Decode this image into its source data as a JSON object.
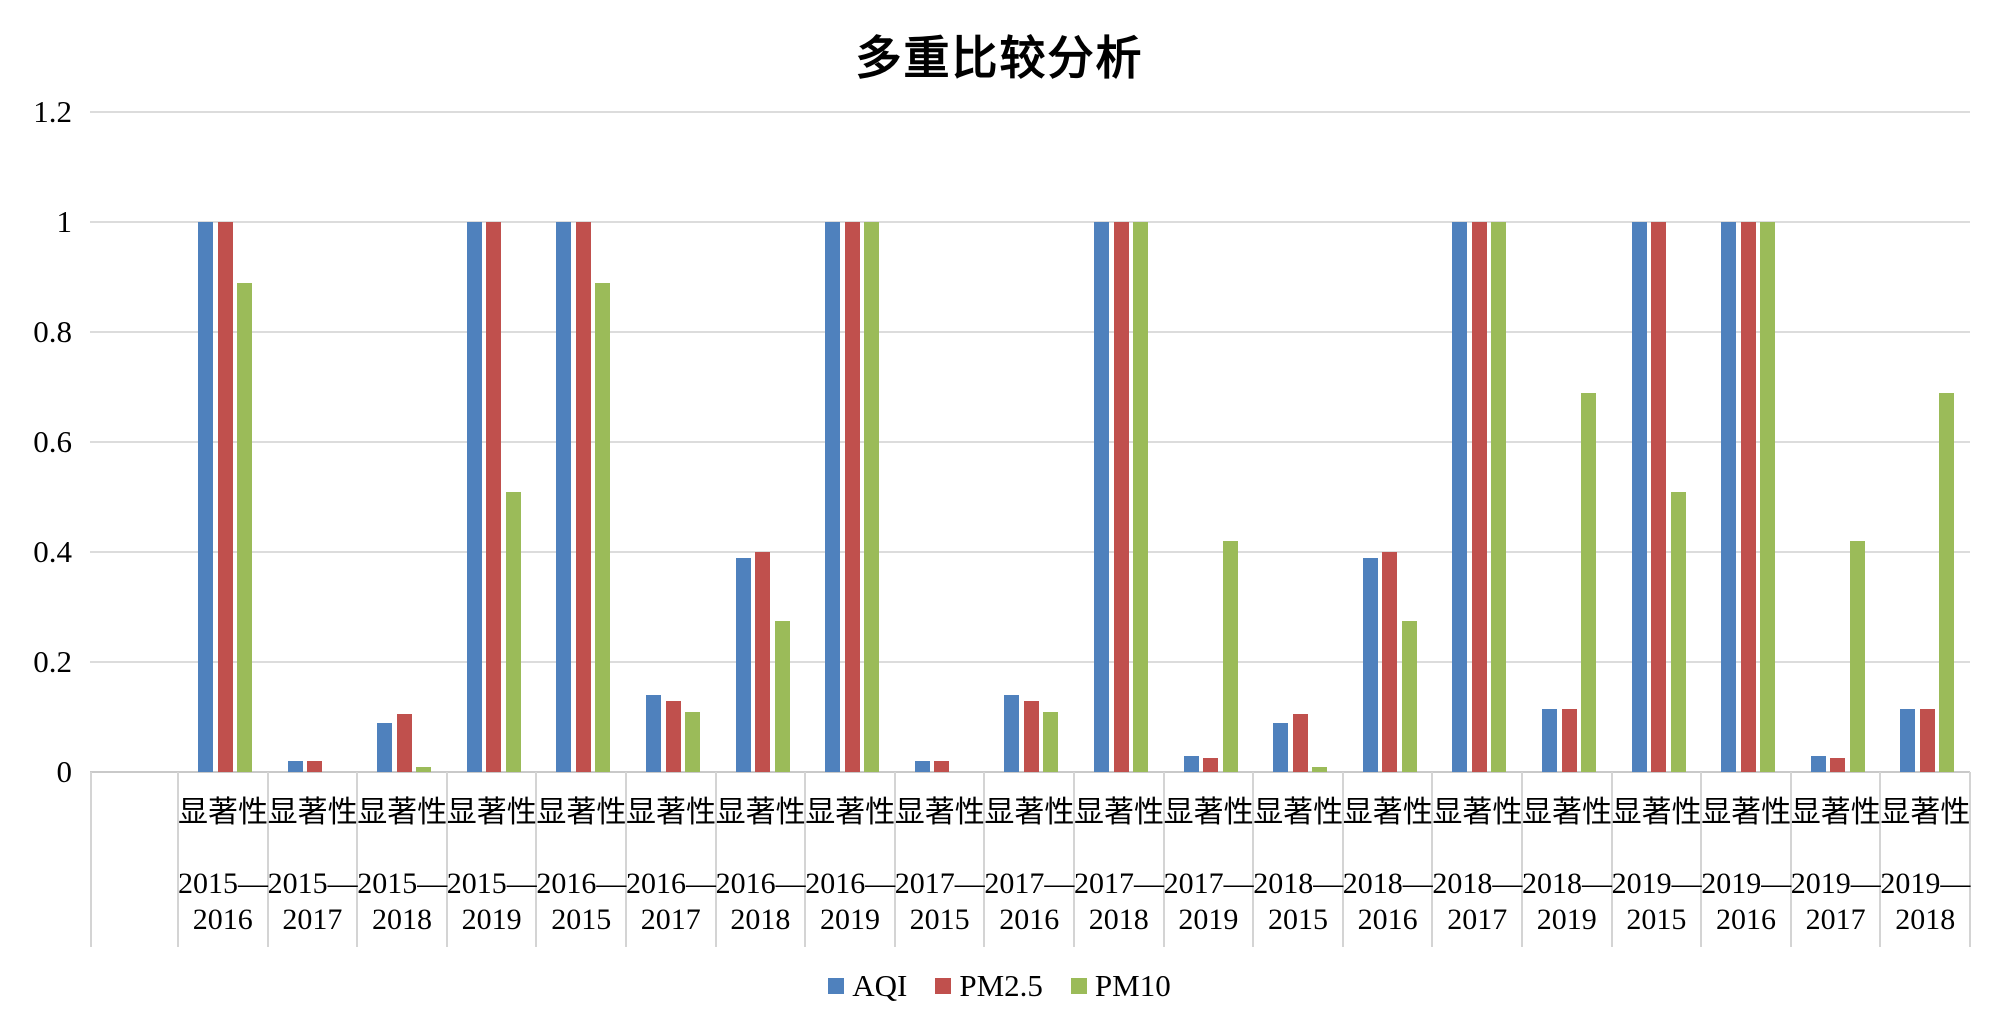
{
  "chart": {
    "title": "多重比较分析",
    "category_sub_label": "显著性",
    "ytick_labels": [
      "0",
      "0.2",
      "0.4",
      "0.6",
      "0.8",
      "1",
      "1.2"
    ]
  },
  "chart_data": {
    "type": "bar",
    "title": "多重比较分析",
    "xlabel": "",
    "ylabel": "",
    "category_sub_label": "显著性",
    "categories": [
      "2015—2016",
      "2015—2017",
      "2015—2018",
      "2015—2019",
      "2016—2015",
      "2016—2017",
      "2016—2018",
      "2016—2019",
      "2017—2015",
      "2017—2016",
      "2017—2018",
      "2017—2019",
      "2018—2015",
      "2018—2016",
      "2018—2017",
      "2018—2019",
      "2019—2015",
      "2019—2016",
      "2019—2017",
      "2019—2018"
    ],
    "series": [
      {
        "name": "AQI",
        "color": "#4F81BD",
        "values": [
          1,
          0.02,
          0.09,
          1,
          1,
          0.14,
          0.39,
          1,
          0.02,
          0.14,
          1,
          0.03,
          0.09,
          0.39,
          1,
          0.115,
          1,
          1,
          0.03,
          0.115
        ]
      },
      {
        "name": "PM2.5",
        "color": "#C0504D",
        "values": [
          1,
          0.02,
          0.105,
          1,
          1,
          0.13,
          0.4,
          1,
          0.02,
          0.13,
          1,
          0.025,
          0.105,
          0.4,
          1,
          0.115,
          1,
          1,
          0.025,
          0.115
        ]
      },
      {
        "name": "PM10",
        "color": "#9BBB59",
        "values": [
          0.89,
          0,
          0.01,
          0.51,
          0.89,
          0.11,
          0.275,
          1,
          0,
          0.11,
          1,
          0.42,
          0.01,
          0.275,
          1,
          0.69,
          0.51,
          1,
          0.42,
          0.69
        ]
      }
    ],
    "ylim": [
      0,
      1.2
    ],
    "yticks": [
      0,
      0.2,
      0.4,
      0.6,
      0.8,
      1,
      1.2
    ],
    "ytick_labels": [
      "0",
      "0.2",
      "0.4",
      "0.6",
      "0.8",
      "1",
      "1.2"
    ],
    "grid": true,
    "legend_position": "bottom",
    "legend_entries": [
      "AQI",
      "PM2.5",
      "PM10"
    ]
  }
}
